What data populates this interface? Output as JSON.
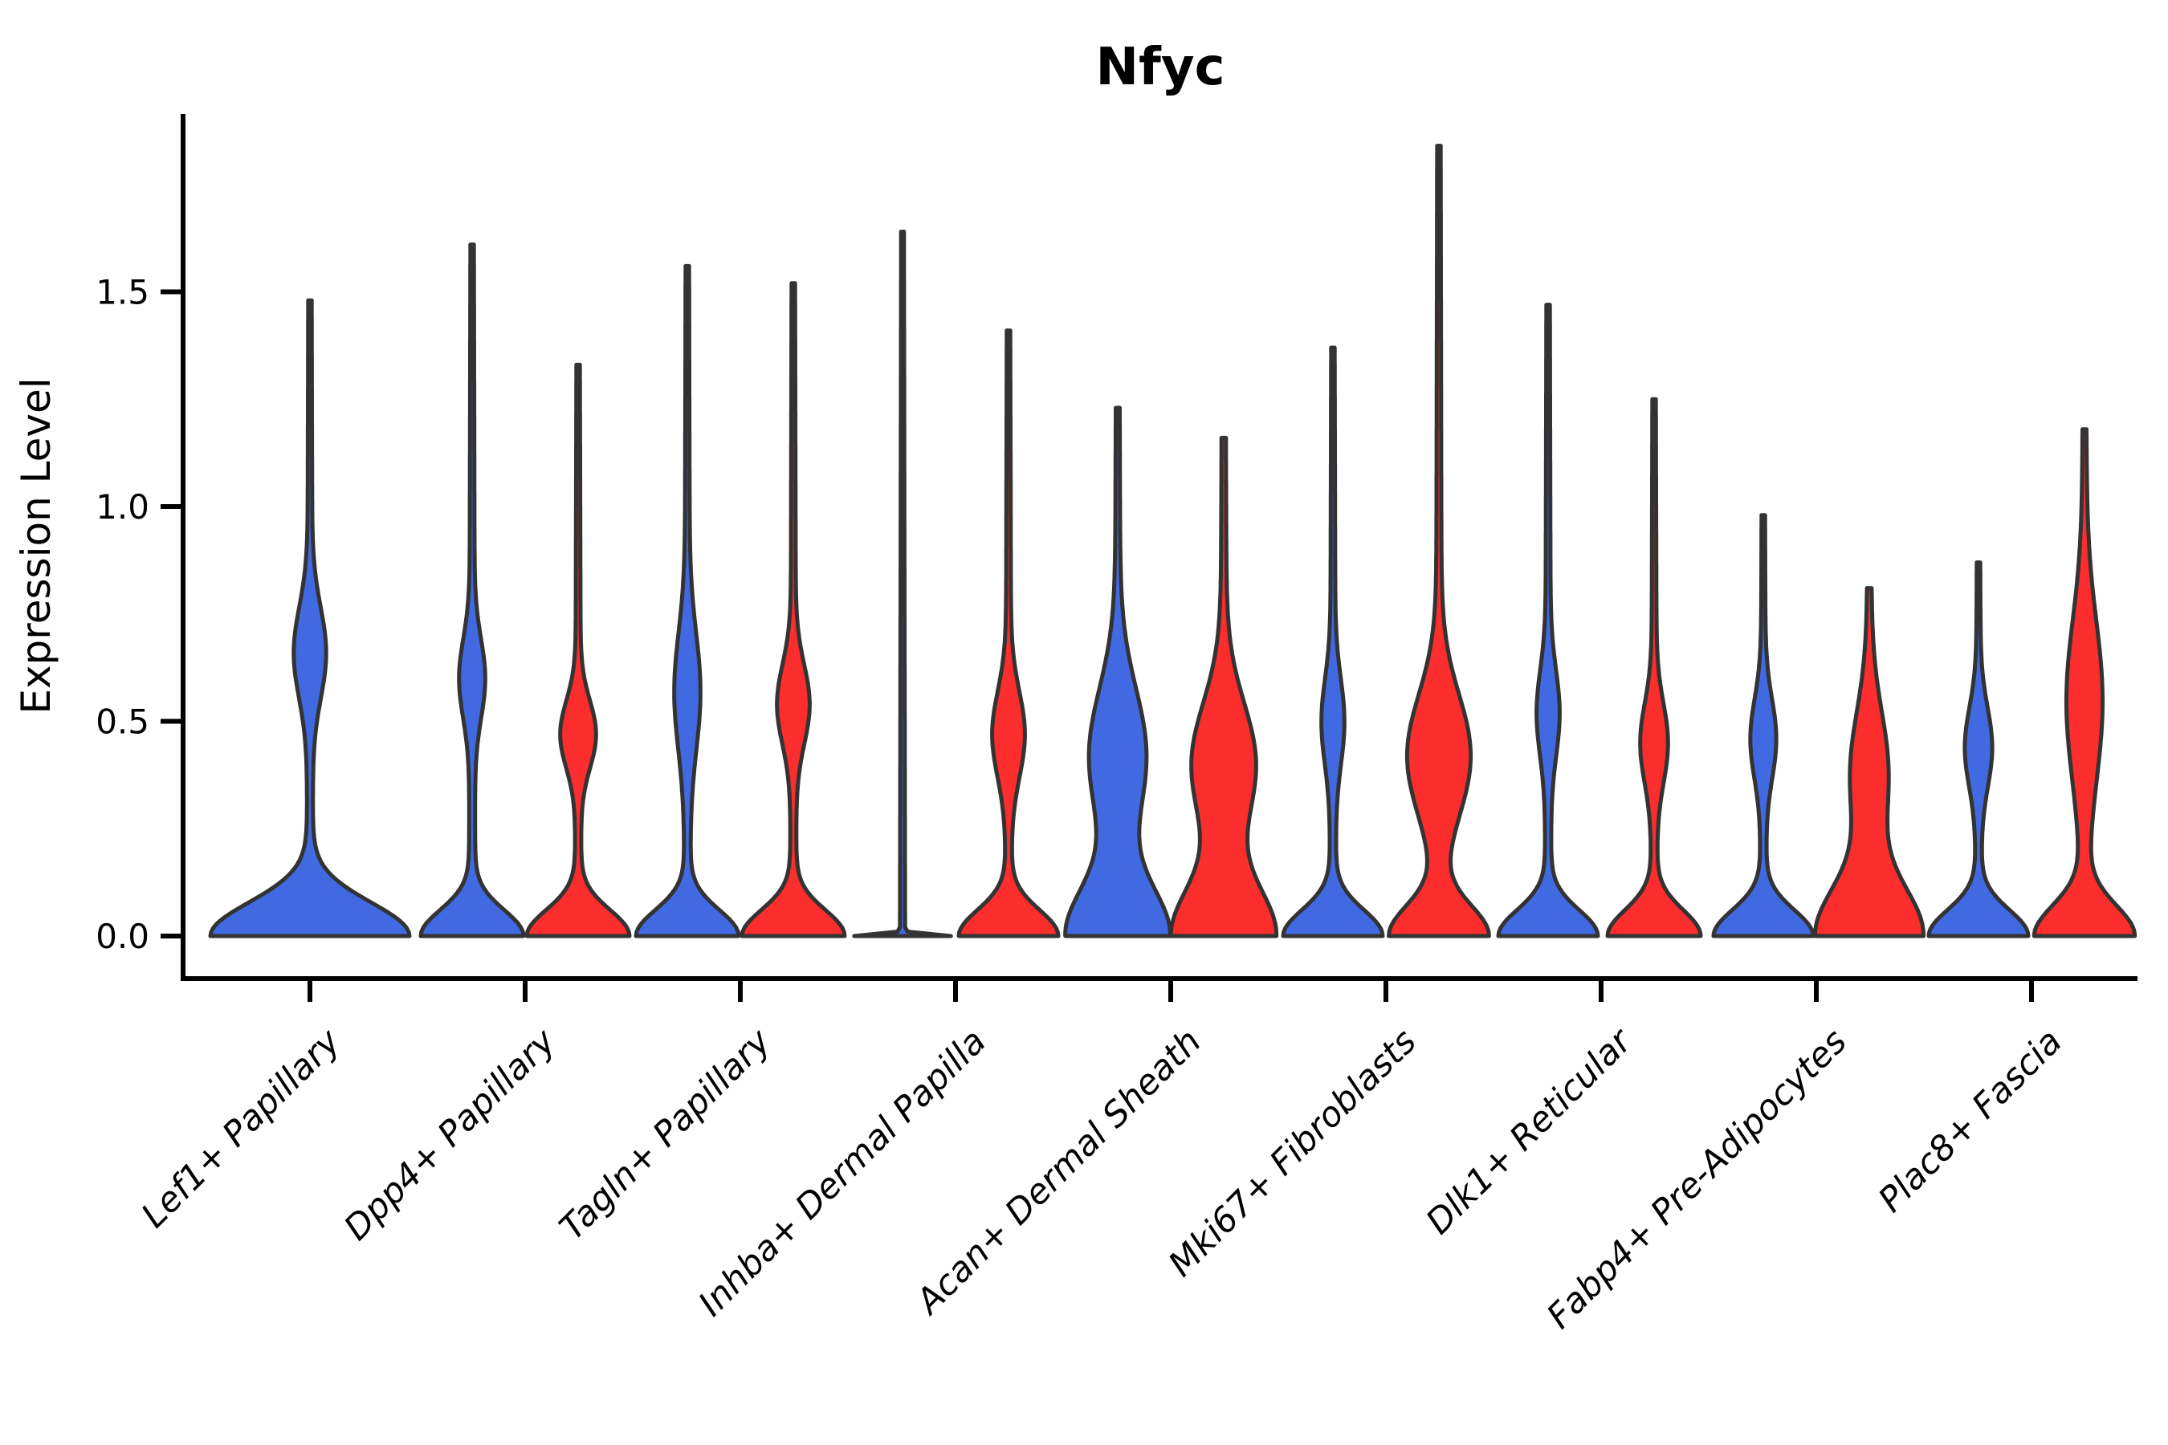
{
  "page": {
    "background": "#ffffff"
  },
  "chart_data": {
    "type": "violin",
    "title": "Nfyc",
    "ylabel": "Expression Level",
    "xlabel": "",
    "ylim": [
      0,
      1.93
    ],
    "yticks": [
      0.0,
      0.5,
      1.0,
      1.5
    ],
    "ytick_labels": [
      "0.0",
      "0.5",
      "1.0",
      "1.5"
    ],
    "grid": false,
    "legend_position": "none",
    "palette": {
      "blue": "#4169E1",
      "red": "#FB2D2D",
      "outline": "#333333",
      "axis": "#000000"
    },
    "categories": [
      "Lef1+ Papillary",
      "Dpp4+ Papillary",
      "Tagln+ Papillary",
      "Inhba+ Dermal Papilla",
      "Acan+ Dermal Sheath",
      "Mki67+ Fibroblasts",
      "Dlk1+ Reticular",
      "Fabp4+ Pre-Adipocytes",
      "Plac8+ Fascia"
    ],
    "groups": [
      {
        "label": "Lef1+ Papillary",
        "violins": [
          {
            "color": "blue",
            "max_expression": 1.48,
            "density_peak_value": 0.0,
            "profile": {
              "base_hw": 120,
              "base_sigma": 0.11,
              "bulge_center": 0.66,
              "bulge_hw": 17,
              "bulge_sigma": 0.15,
              "tip_hw": 4
            }
          }
        ]
      },
      {
        "label": "Dpp4+ Papillary",
        "violins": [
          {
            "color": "blue",
            "max_expression": 1.61,
            "density_peak_value": 0.0,
            "profile": {
              "base_hw": 60,
              "base_sigma": 0.085,
              "bulge_center": 0.6,
              "bulge_hw": 13,
              "bulge_sigma": 0.13,
              "tip_hw": 4
            }
          },
          {
            "color": "red",
            "max_expression": 1.33,
            "density_peak_value": 0.0,
            "profile": {
              "base_hw": 60,
              "base_sigma": 0.085,
              "bulge_center": 0.47,
              "bulge_hw": 19,
              "bulge_sigma": 0.11,
              "tip_hw": 4
            }
          }
        ]
      },
      {
        "label": "Tagln+ Papillary",
        "violins": [
          {
            "color": "blue",
            "max_expression": 1.56,
            "density_peak_value": 0.0,
            "profile": {
              "base_hw": 60,
              "base_sigma": 0.085,
              "bulge_center": 0.57,
              "bulge_hw": 13,
              "bulge_sigma": 0.19,
              "tip_hw": 4
            }
          },
          {
            "color": "red",
            "max_expression": 1.52,
            "density_peak_value": 0.0,
            "profile": {
              "base_hw": 60,
              "base_sigma": 0.085,
              "bulge_center": 0.54,
              "bulge_hw": 17,
              "bulge_sigma": 0.13,
              "tip_hw": 4
            }
          }
        ]
      },
      {
        "label": "Inhba+ Dermal Papilla",
        "violins": [
          {
            "color": "blue",
            "max_expression": 1.64,
            "density_peak_value": 0.0,
            "profile": {
              "base_hw": 57,
              "base_sigma": 0.006,
              "bulge_center": 0.0,
              "bulge_hw": 0,
              "bulge_sigma": 1,
              "tip_hw": 3.2
            }
          },
          {
            "color": "red",
            "max_expression": 1.41,
            "density_peak_value": 0.0,
            "profile": {
              "base_hw": 58,
              "base_sigma": 0.085,
              "bulge_center": 0.47,
              "bulge_hw": 17,
              "bulge_sigma": 0.14,
              "tip_hw": 4
            }
          }
        ]
      },
      {
        "label": "Acan+ Dermal Sheath",
        "violins": [
          {
            "color": "blue",
            "max_expression": 1.23,
            "density_peak_value": 0.0,
            "profile": {
              "base_hw": 60,
              "base_sigma": 0.16,
              "bulge_center": 0.42,
              "bulge_hw": 32,
              "bulge_sigma": 0.22,
              "tip_hw": 4.5
            }
          },
          {
            "color": "red",
            "max_expression": 1.16,
            "density_peak_value": 0.0,
            "profile": {
              "base_hw": 60,
              "base_sigma": 0.16,
              "bulge_center": 0.4,
              "bulge_hw": 36,
              "bulge_sigma": 0.2,
              "tip_hw": 5
            }
          }
        ]
      },
      {
        "label": "Mki67+ Fibroblasts",
        "violins": [
          {
            "color": "blue",
            "max_expression": 1.37,
            "density_peak_value": 0.0,
            "profile": {
              "base_hw": 58,
              "base_sigma": 0.085,
              "bulge_center": 0.5,
              "bulge_hw": 11,
              "bulge_sigma": 0.14,
              "tip_hw": 4
            }
          },
          {
            "color": "red",
            "max_expression": 1.84,
            "density_peak_value": 0.0,
            "profile": {
              "base_hw": 58,
              "base_sigma": 0.1,
              "bulge_center": 0.42,
              "bulge_hw": 36,
              "bulge_sigma": 0.2,
              "tip_hw": 4
            }
          }
        ]
      },
      {
        "label": "Dlk1+ Reticular",
        "violins": [
          {
            "color": "blue",
            "max_expression": 1.47,
            "density_peak_value": 0.0,
            "profile": {
              "base_hw": 58,
              "base_sigma": 0.085,
              "bulge_center": 0.52,
              "bulge_hw": 11,
              "bulge_sigma": 0.14,
              "tip_hw": 4
            }
          },
          {
            "color": "red",
            "max_expression": 1.25,
            "density_peak_value": 0.0,
            "profile": {
              "base_hw": 54,
              "base_sigma": 0.085,
              "bulge_center": 0.45,
              "bulge_hw": 14,
              "bulge_sigma": 0.13,
              "tip_hw": 4
            }
          }
        ]
      },
      {
        "label": "Fabp4+ Pre-Adipocytes",
        "violins": [
          {
            "color": "blue",
            "max_expression": 0.98,
            "density_peak_value": 0.0,
            "profile": {
              "base_hw": 58,
              "base_sigma": 0.085,
              "bulge_center": 0.46,
              "bulge_hw": 13,
              "bulge_sigma": 0.13,
              "tip_hw": 4
            }
          },
          {
            "color": "red",
            "max_expression": 0.81,
            "density_peak_value": 0.0,
            "profile": {
              "base_hw": 62,
              "base_sigma": 0.16,
              "bulge_center": 0.38,
              "bulge_hw": 20,
              "bulge_sigma": 0.2,
              "tip_hw": 5
            }
          }
        ]
      },
      {
        "label": "Plac8+ Fascia",
        "violins": [
          {
            "color": "blue",
            "max_expression": 0.87,
            "density_peak_value": 0.0,
            "profile": {
              "base_hw": 58,
              "base_sigma": 0.085,
              "bulge_center": 0.44,
              "bulge_hw": 14,
              "bulge_sigma": 0.13,
              "tip_hw": 4
            }
          },
          {
            "color": "red",
            "max_expression": 1.18,
            "density_peak_value": 0.0,
            "profile": {
              "base_hw": 58,
              "base_sigma": 0.1,
              "bulge_center": 0.55,
              "bulge_hw": 19,
              "bulge_sigma": 0.26,
              "tip_hw": 4.5
            }
          }
        ]
      }
    ]
  }
}
